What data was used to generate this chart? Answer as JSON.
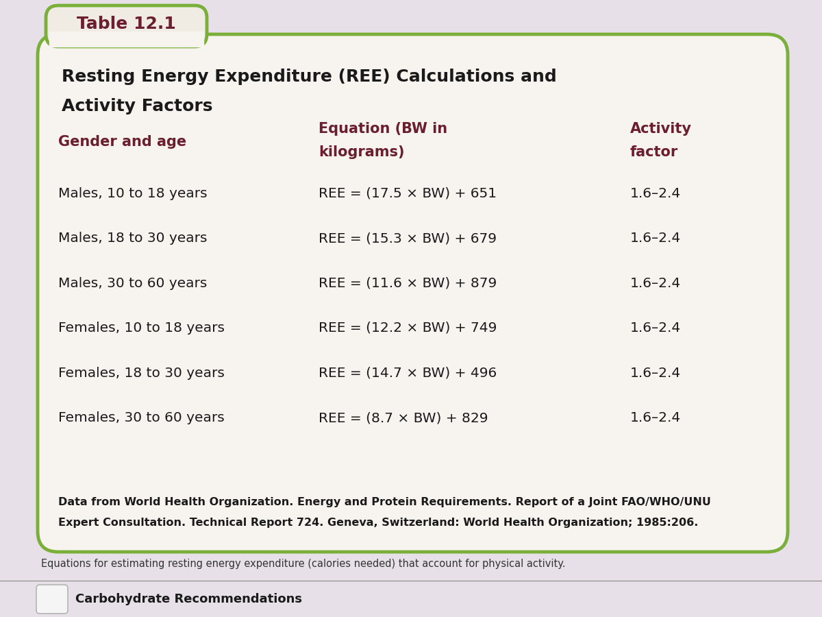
{
  "table_label": "Table 12.1",
  "title_line1": "Resting Energy Expenditure (REE) Calculations and",
  "title_line2": "Activity Factors",
  "col_headers": [
    "Gender and age",
    "Equation (BW in\nkilograms)",
    "Activity\nfactor"
  ],
  "rows": [
    [
      "Males, 10 to 18 years",
      "REE = (17.5 × BW) + 651",
      "1.6–2.4"
    ],
    [
      "Males, 18 to 30 years",
      "REE = (15.3 × BW) + 679",
      "1.6–2.4"
    ],
    [
      "Males, 30 to 60 years",
      "REE = (11.6 × BW) + 879",
      "1.6–2.4"
    ],
    [
      "Females, 10 to 18 years",
      "REE = (12.2 × BW) + 749",
      "1.6–2.4"
    ],
    [
      "Females, 18 to 30 years",
      "REE = (14.7 × BW) + 496",
      "1.6–2.4"
    ],
    [
      "Females, 30 to 60 years",
      "REE = (8.7 × BW) + 829",
      "1.6–2.4"
    ]
  ],
  "footnote_line1": "Data from World Health Organization. Energy and Protein Requirements. Report of a Joint FAO/WHO/UNU",
  "footnote_line2": "Expert Consultation. Technical Report 724. Geneva, Switzerland: World Health Organization; 1985:206.",
  "caption": "Equations for estimating resting energy expenditure (calories needed) that account for physical activity.",
  "bottom_label": "Carbohydrate Recommendations",
  "bg_color": "#e8e0e8",
  "box_bg": "#f7f4f0",
  "box_border": "#7ab03a",
  "tab_bg": "#f0ece4",
  "header_color": "#6b1e2e",
  "text_color": "#1a1a1a",
  "footnote_color": "#1a1a1a",
  "caption_color": "#333333",
  "title_color": "#1a1a1a",
  "divider_color": "#888888"
}
